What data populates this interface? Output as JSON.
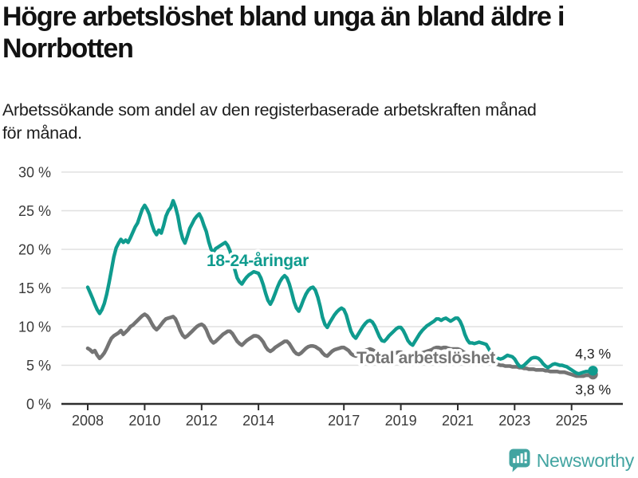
{
  "header": {
    "title": "Högre arbetslöshet bland unga än bland äldre i Norrbotten",
    "title_lines": [
      "Högre arbetslöshet bland unga än bland äldre i",
      "Norrbotten"
    ],
    "subtitle": "Arbetssökande som andel av den registerbaserade arbetskraften månad för månad.",
    "subtitle_lines": [
      "Arbetssökande som andel av den registerbaserade arbetskraften månad",
      "för månad."
    ]
  },
  "footer": {
    "brand": "Newsworthy",
    "logo_icon": "newsworthy-speech-bubble-bar-chart-icon"
  },
  "colors": {
    "youth_line": "#0f9b8e",
    "total_line": "#747474",
    "grid": "#e0e0e0",
    "axis": "#2d2d2d",
    "tick_text": "#3a3a3a",
    "value_text": "#1f1f1f",
    "title_text": "#121212",
    "brand": "#42a4a1",
    "background": "#ffffff"
  },
  "chart_data": {
    "type": "line",
    "unit": "%",
    "frequency": "monthly",
    "x_start_month": "2008-01",
    "x_end_month": "2025-10",
    "grid": "horizontal",
    "legend": "inline-labels",
    "x_axis": {
      "tick_years": [
        2008,
        2010,
        2012,
        2014,
        2017,
        2019,
        2021,
        2023,
        2025
      ],
      "tick_labels": [
        "2008",
        "2010",
        "2012",
        "2014",
        "2017",
        "2019",
        "2021",
        "2023",
        "2025"
      ]
    },
    "y_axis": {
      "min": 0,
      "max": 30,
      "tick_values": [
        0,
        5,
        10,
        15,
        20,
        25,
        30
      ],
      "tick_labels": [
        "0 %",
        "5 %",
        "10 %",
        "15 %",
        "20 %",
        "25 %",
        "30 %"
      ]
    },
    "series": [
      {
        "name": "18-24-åringar",
        "color": "#0f9b8e",
        "end_label": "4,3 %",
        "end_value": 4.3,
        "values": [
          15.1,
          14.4,
          13.7,
          12.9,
          12.2,
          11.7,
          12.2,
          13.0,
          14.2,
          15.7,
          17.3,
          19.0,
          20.2,
          20.8,
          21.3,
          20.9,
          21.2,
          20.9,
          21.5,
          22.2,
          22.9,
          23.4,
          24.3,
          25.2,
          25.7,
          25.2,
          24.5,
          23.3,
          22.4,
          21.9,
          22.5,
          22.1,
          23.1,
          24.3,
          25.0,
          25.4,
          26.3,
          25.5,
          24.3,
          22.6,
          21.4,
          20.8,
          21.7,
          22.7,
          23.3,
          23.9,
          24.3,
          24.6,
          24.0,
          23.1,
          22.3,
          21.0,
          20.0,
          19.7,
          20.1,
          20.3,
          20.5,
          20.7,
          20.9,
          20.5,
          19.8,
          18.6,
          17.4,
          16.3,
          15.8,
          15.5,
          16.0,
          16.4,
          16.7,
          16.9,
          17.1,
          17.0,
          16.9,
          16.3,
          15.4,
          14.3,
          13.4,
          12.9,
          13.5,
          14.3,
          15.1,
          15.8,
          16.3,
          16.6,
          16.3,
          15.5,
          14.4,
          13.2,
          12.4,
          12.0,
          12.7,
          13.5,
          14.2,
          14.7,
          15.0,
          15.1,
          14.7,
          13.8,
          12.6,
          11.2,
          10.3,
          9.9,
          10.5,
          11.0,
          11.5,
          11.9,
          12.2,
          12.4,
          12.2,
          11.5,
          10.4,
          9.4,
          8.8,
          8.5,
          9.0,
          9.5,
          10.0,
          10.4,
          10.7,
          10.8,
          10.6,
          10.1,
          9.4,
          8.7,
          8.2,
          8.1,
          8.4,
          8.8,
          9.1,
          9.4,
          9.7,
          9.9,
          9.9,
          9.5,
          8.9,
          8.2,
          7.8,
          7.6,
          8.1,
          8.6,
          9.1,
          9.5,
          9.8,
          10.1,
          10.3,
          10.5,
          10.7,
          11.0,
          11.0,
          10.8,
          11.0,
          11.1,
          10.9,
          10.7,
          10.9,
          11.1,
          11.1,
          10.7,
          10.0,
          9.0,
          8.3,
          7.9,
          7.9,
          7.8,
          7.9,
          8.0,
          7.9,
          7.8,
          7.7,
          7.2,
          6.6,
          6.2,
          6.0,
          5.9,
          5.8,
          5.9,
          6.1,
          6.3,
          6.2,
          6.1,
          5.8,
          5.3,
          4.9,
          4.8,
          5.0,
          5.3,
          5.6,
          5.9,
          6.0,
          6.0,
          5.9,
          5.6,
          5.2,
          4.9,
          4.7,
          4.9,
          5.1,
          5.2,
          5.1,
          5.0,
          5.0,
          4.9,
          4.8,
          4.6,
          4.4,
          4.2,
          4.0,
          3.9,
          4.0,
          4.1,
          4.2,
          4.2,
          4.3,
          4.3
        ]
      },
      {
        "name": "Total arbetslöshet",
        "color": "#747474",
        "end_label": "3,8 %",
        "end_value": 3.8,
        "values": [
          7.2,
          7.0,
          6.7,
          6.9,
          6.3,
          5.9,
          6.2,
          6.6,
          7.2,
          7.9,
          8.5,
          8.8,
          9.0,
          9.2,
          9.5,
          9.0,
          9.3,
          9.6,
          10.0,
          10.2,
          10.5,
          10.8,
          11.1,
          11.4,
          11.6,
          11.4,
          11.0,
          10.4,
          9.9,
          9.6,
          9.9,
          10.3,
          10.7,
          11.0,
          11.1,
          11.2,
          11.3,
          11.0,
          10.3,
          9.5,
          8.9,
          8.6,
          8.8,
          9.1,
          9.4,
          9.7,
          10.0,
          10.2,
          10.3,
          10.1,
          9.6,
          8.8,
          8.2,
          7.9,
          8.1,
          8.4,
          8.7,
          9.0,
          9.2,
          9.4,
          9.4,
          9.1,
          8.6,
          8.1,
          7.8,
          7.6,
          7.9,
          8.2,
          8.4,
          8.6,
          8.8,
          8.8,
          8.7,
          8.4,
          8.0,
          7.4,
          7.0,
          6.8,
          7.0,
          7.3,
          7.5,
          7.7,
          7.9,
          8.1,
          8.1,
          7.8,
          7.3,
          6.8,
          6.5,
          6.4,
          6.6,
          6.9,
          7.2,
          7.4,
          7.5,
          7.5,
          7.4,
          7.2,
          7.0,
          6.6,
          6.3,
          6.2,
          6.5,
          6.8,
          7.0,
          7.1,
          7.2,
          7.3,
          7.3,
          7.1,
          6.9,
          6.5,
          6.3,
          6.2,
          6.4,
          6.6,
          6.8,
          6.9,
          7.0,
          7.1,
          7.0,
          6.8,
          6.5,
          6.2,
          6.0,
          5.9,
          6.0,
          6.2,
          6.4,
          6.5,
          6.6,
          6.7,
          6.7,
          6.5,
          6.3,
          6.1,
          6.0,
          6.0,
          6.2,
          6.4,
          6.5,
          6.6,
          6.7,
          6.8,
          6.9,
          7.0,
          7.2,
          7.3,
          7.3,
          7.2,
          7.3,
          7.3,
          7.2,
          7.1,
          7.1,
          7.1,
          7.1,
          7.0,
          6.8,
          6.6,
          6.4,
          6.2,
          6.1,
          6.0,
          5.9,
          5.9,
          5.8,
          5.8,
          5.7,
          5.6,
          5.4,
          5.3,
          5.2,
          5.1,
          5.0,
          5.0,
          4.9,
          4.9,
          4.9,
          4.8,
          4.8,
          4.8,
          4.7,
          4.7,
          4.6,
          4.6,
          4.5,
          4.5,
          4.5,
          4.4,
          4.4,
          4.4,
          4.4,
          4.3,
          4.3,
          4.2,
          4.2,
          4.2,
          4.2,
          4.1,
          4.1,
          4.1,
          4.0,
          3.9,
          3.8,
          3.7,
          3.6,
          3.6,
          3.6,
          3.6,
          3.7,
          3.7,
          3.7,
          3.8
        ]
      }
    ]
  }
}
